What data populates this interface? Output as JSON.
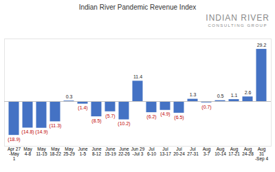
{
  "chart_data": {
    "type": "bar",
    "title": "Indian River Pandemic Revenue Index",
    "annotations": [
      "INDIAN RIVER",
      "CONSULTING GROUP"
    ],
    "categories": [
      "Apr 27\n-May\n1",
      "May\n4-8",
      "May\n11-15",
      "May\n18-22",
      "May\n25-29",
      "June\n1-5",
      "June\n8-12",
      "June\n15-19",
      "June\n22-26",
      "Jun 29\n-Jul 3",
      "Jul\n6-10",
      "Jul\n13-17",
      "Jul\n20-24",
      "Jul\n27-31",
      "Aug\n3-7",
      "Aug\n10-14",
      "Aug\n17-21",
      "Aug\n24-28",
      "Aug\n31\n-Sep 4"
    ],
    "values": [
      -18.9,
      -14.8,
      -14.9,
      -11.3,
      0.3,
      -1.4,
      -8.5,
      -5.7,
      -10.2,
      11.4,
      -6.2,
      -4.9,
      -6.5,
      1.3,
      -0.7,
      0.5,
      1.1,
      2.6,
      29.2
    ],
    "value_labels": [
      "(18.9)",
      "(14.8)",
      "(14.9)",
      "(11.3)",
      "0.3",
      "(1.4)",
      "(8.5)",
      "(5.7)",
      "(10.2)",
      "11.4",
      "(6.2)",
      "(4.9)",
      "(6.5)",
      "1.3",
      "(0.7)",
      "0.5",
      "1.1",
      "2.6",
      "29.2"
    ],
    "color": "#4472c4",
    "ylim": [
      -25,
      35
    ],
    "data_labels": true,
    "tick_labels": "x",
    "grid": false
  }
}
